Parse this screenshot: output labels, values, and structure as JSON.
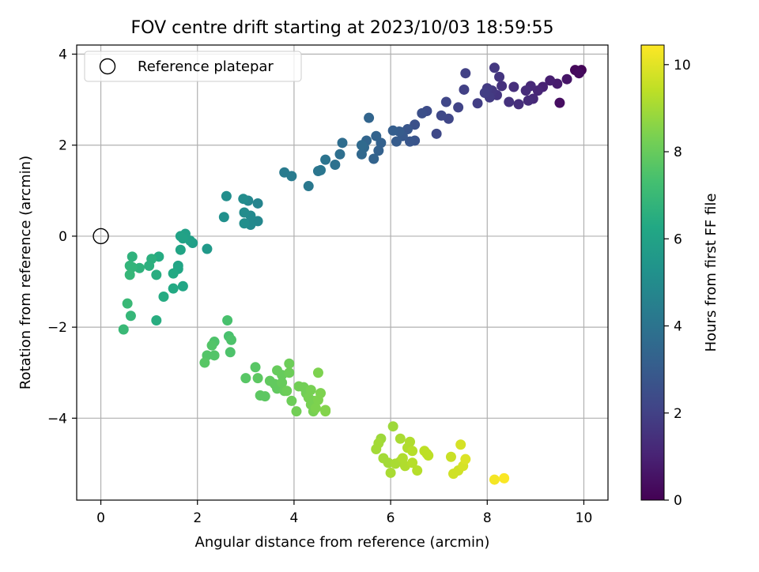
{
  "chart_data": {
    "type": "scatter",
    "title": "FOV centre drift starting at 2023/10/03 18:59:55",
    "xlabel": "Angular distance from reference (arcmin)",
    "ylabel": "Rotation from reference (arcmin)",
    "xlim": [
      -0.5,
      10.5
    ],
    "ylim": [
      -5.8,
      4.2
    ],
    "xticks": [
      0,
      2,
      4,
      6,
      8,
      10
    ],
    "yticks": [
      -4,
      -2,
      0,
      2,
      4
    ],
    "grid": true,
    "legend": {
      "position": "top-left",
      "entries": [
        "Reference platepar"
      ]
    },
    "reference_point": {
      "x": 0,
      "y": 0,
      "label": "Reference platepar"
    },
    "colorbar": {
      "label": "Hours from first FF file",
      "colormap": "viridis",
      "range": [
        0,
        10.45
      ],
      "ticks": [
        0,
        2,
        4,
        6,
        8,
        10
      ]
    },
    "points": [
      {
        "x": 9.95,
        "y": 3.65,
        "c": 0.1
      },
      {
        "x": 9.82,
        "y": 3.65,
        "c": 0.2
      },
      {
        "x": 9.9,
        "y": 3.58,
        "c": 0.3
      },
      {
        "x": 9.65,
        "y": 3.45,
        "c": 0.6
      },
      {
        "x": 9.5,
        "y": 2.93,
        "c": 0.4
      },
      {
        "x": 9.45,
        "y": 3.35,
        "c": 0.8
      },
      {
        "x": 9.3,
        "y": 3.42,
        "c": 0.9
      },
      {
        "x": 9.15,
        "y": 3.28,
        "c": 1.0
      },
      {
        "x": 9.05,
        "y": 3.2,
        "c": 1.1
      },
      {
        "x": 8.95,
        "y": 3.02,
        "c": 1.2
      },
      {
        "x": 8.85,
        "y": 2.98,
        "c": 1.3
      },
      {
        "x": 8.9,
        "y": 3.3,
        "c": 1.2
      },
      {
        "x": 8.8,
        "y": 3.2,
        "c": 1.3
      },
      {
        "x": 8.65,
        "y": 2.9,
        "c": 1.4
      },
      {
        "x": 8.55,
        "y": 3.28,
        "c": 1.4
      },
      {
        "x": 8.45,
        "y": 2.95,
        "c": 1.5
      },
      {
        "x": 8.3,
        "y": 3.3,
        "c": 1.5
      },
      {
        "x": 8.25,
        "y": 3.5,
        "c": 1.6
      },
      {
        "x": 8.2,
        "y": 3.1,
        "c": 1.6
      },
      {
        "x": 8.15,
        "y": 3.7,
        "c": 1.7
      },
      {
        "x": 8.1,
        "y": 3.2,
        "c": 1.7
      },
      {
        "x": 8.05,
        "y": 3.05,
        "c": 1.8
      },
      {
        "x": 8.0,
        "y": 3.25,
        "c": 1.8
      },
      {
        "x": 7.95,
        "y": 3.15,
        "c": 1.9
      },
      {
        "x": 7.8,
        "y": 2.92,
        "c": 1.9
      },
      {
        "x": 7.55,
        "y": 3.58,
        "c": 2.0
      },
      {
        "x": 7.52,
        "y": 3.22,
        "c": 2.0
      },
      {
        "x": 7.4,
        "y": 2.83,
        "c": 2.1
      },
      {
        "x": 7.2,
        "y": 2.58,
        "c": 2.2
      },
      {
        "x": 7.15,
        "y": 2.95,
        "c": 2.2
      },
      {
        "x": 7.05,
        "y": 2.65,
        "c": 2.3
      },
      {
        "x": 6.95,
        "y": 2.25,
        "c": 2.3
      },
      {
        "x": 6.75,
        "y": 2.75,
        "c": 2.4
      },
      {
        "x": 6.65,
        "y": 2.7,
        "c": 2.5
      },
      {
        "x": 6.5,
        "y": 2.45,
        "c": 2.6
      },
      {
        "x": 6.5,
        "y": 2.1,
        "c": 2.7
      },
      {
        "x": 6.4,
        "y": 2.08,
        "c": 2.8
      },
      {
        "x": 6.35,
        "y": 2.35,
        "c": 2.8
      },
      {
        "x": 6.25,
        "y": 2.2,
        "c": 2.9
      },
      {
        "x": 6.18,
        "y": 2.3,
        "c": 3.0
      },
      {
        "x": 6.12,
        "y": 2.08,
        "c": 3.0
      },
      {
        "x": 6.05,
        "y": 2.32,
        "c": 3.1
      },
      {
        "x": 5.8,
        "y": 2.05,
        "c": 3.2
      },
      {
        "x": 5.75,
        "y": 1.88,
        "c": 3.2
      },
      {
        "x": 5.7,
        "y": 2.2,
        "c": 3.3
      },
      {
        "x": 5.65,
        "y": 1.7,
        "c": 3.3
      },
      {
        "x": 5.55,
        "y": 2.6,
        "c": 3.4
      },
      {
        "x": 5.5,
        "y": 2.1,
        "c": 3.4
      },
      {
        "x": 5.45,
        "y": 1.95,
        "c": 3.5
      },
      {
        "x": 5.4,
        "y": 1.8,
        "c": 3.5
      },
      {
        "x": 5.4,
        "y": 2.0,
        "c": 3.6
      },
      {
        "x": 5.0,
        "y": 2.05,
        "c": 3.7
      },
      {
        "x": 4.95,
        "y": 1.8,
        "c": 3.8
      },
      {
        "x": 4.85,
        "y": 1.57,
        "c": 3.9
      },
      {
        "x": 4.65,
        "y": 1.68,
        "c": 4.0
      },
      {
        "x": 4.55,
        "y": 1.45,
        "c": 4.1
      },
      {
        "x": 4.5,
        "y": 1.43,
        "c": 4.1
      },
      {
        "x": 4.3,
        "y": 1.1,
        "c": 4.2
      },
      {
        "x": 3.95,
        "y": 1.32,
        "c": 4.3
      },
      {
        "x": 3.8,
        "y": 1.4,
        "c": 4.3
      },
      {
        "x": 3.25,
        "y": 0.72,
        "c": 4.7
      },
      {
        "x": 3.25,
        "y": 0.33,
        "c": 4.8
      },
      {
        "x": 3.1,
        "y": 0.45,
        "c": 4.9
      },
      {
        "x": 3.1,
        "y": 0.25,
        "c": 4.9
      },
      {
        "x": 3.05,
        "y": 0.78,
        "c": 4.8
      },
      {
        "x": 2.97,
        "y": 0.52,
        "c": 5.0
      },
      {
        "x": 2.95,
        "y": 0.82,
        "c": 5.0
      },
      {
        "x": 2.97,
        "y": 0.28,
        "c": 5.1
      },
      {
        "x": 2.6,
        "y": 0.88,
        "c": 5.1
      },
      {
        "x": 2.55,
        "y": 0.42,
        "c": 5.2
      },
      {
        "x": 2.2,
        "y": -0.28,
        "c": 5.6
      },
      {
        "x": 1.9,
        "y": -0.15,
        "c": 5.8
      },
      {
        "x": 1.85,
        "y": -0.1,
        "c": 5.9
      },
      {
        "x": 1.75,
        "y": 0.05,
        "c": 5.9
      },
      {
        "x": 1.7,
        "y": -0.05,
        "c": 6.0
      },
      {
        "x": 1.65,
        "y": 0.0,
        "c": 6.0
      },
      {
        "x": 1.65,
        "y": -0.3,
        "c": 6.1
      },
      {
        "x": 1.6,
        "y": -0.65,
        "c": 6.1
      },
      {
        "x": 1.6,
        "y": -0.72,
        "c": 6.2
      },
      {
        "x": 1.7,
        "y": -1.1,
        "c": 6.2
      },
      {
        "x": 1.5,
        "y": -0.82,
        "c": 6.3
      },
      {
        "x": 1.5,
        "y": -1.15,
        "c": 6.3
      },
      {
        "x": 1.3,
        "y": -1.33,
        "c": 6.4
      },
      {
        "x": 1.2,
        "y": -0.45,
        "c": 6.4
      },
      {
        "x": 1.15,
        "y": -0.85,
        "c": 6.5
      },
      {
        "x": 1.15,
        "y": -1.85,
        "c": 6.5
      },
      {
        "x": 1.05,
        "y": -0.5,
        "c": 6.6
      },
      {
        "x": 1.0,
        "y": -0.65,
        "c": 6.6
      },
      {
        "x": 0.8,
        "y": -0.7,
        "c": 6.7
      },
      {
        "x": 0.65,
        "y": -0.45,
        "c": 6.7
      },
      {
        "x": 0.65,
        "y": -0.68,
        "c": 6.8
      },
      {
        "x": 0.6,
        "y": -0.65,
        "c": 6.8
      },
      {
        "x": 0.6,
        "y": -0.85,
        "c": 6.9
      },
      {
        "x": 0.62,
        "y": -1.75,
        "c": 6.9
      },
      {
        "x": 0.55,
        "y": -1.48,
        "c": 7.0
      },
      {
        "x": 0.47,
        "y": -2.05,
        "c": 7.0
      },
      {
        "x": 2.62,
        "y": -1.85,
        "c": 7.4
      },
      {
        "x": 2.65,
        "y": -2.2,
        "c": 7.4
      },
      {
        "x": 2.7,
        "y": -2.28,
        "c": 7.5
      },
      {
        "x": 2.68,
        "y": -2.55,
        "c": 7.5
      },
      {
        "x": 2.35,
        "y": -2.32,
        "c": 7.5
      },
      {
        "x": 2.3,
        "y": -2.4,
        "c": 7.6
      },
      {
        "x": 2.35,
        "y": -2.62,
        "c": 7.6
      },
      {
        "x": 2.2,
        "y": -2.62,
        "c": 7.6
      },
      {
        "x": 2.15,
        "y": -2.78,
        "c": 7.7
      },
      {
        "x": 3.2,
        "y": -2.88,
        "c": 7.7
      },
      {
        "x": 3.0,
        "y": -3.12,
        "c": 7.7
      },
      {
        "x": 3.25,
        "y": -3.12,
        "c": 7.8
      },
      {
        "x": 3.3,
        "y": -3.5,
        "c": 7.8
      },
      {
        "x": 3.4,
        "y": -3.52,
        "c": 7.8
      },
      {
        "x": 3.5,
        "y": -3.18,
        "c": 7.9
      },
      {
        "x": 3.6,
        "y": -3.25,
        "c": 7.9
      },
      {
        "x": 3.65,
        "y": -3.35,
        "c": 7.9
      },
      {
        "x": 3.65,
        "y": -2.95,
        "c": 8.0
      },
      {
        "x": 3.75,
        "y": -3.05,
        "c": 8.0
      },
      {
        "x": 3.75,
        "y": -3.22,
        "c": 8.0
      },
      {
        "x": 3.8,
        "y": -3.4,
        "c": 8.0
      },
      {
        "x": 3.9,
        "y": -2.8,
        "c": 8.1
      },
      {
        "x": 3.9,
        "y": -3.0,
        "c": 8.1
      },
      {
        "x": 3.85,
        "y": -3.4,
        "c": 8.1
      },
      {
        "x": 3.95,
        "y": -3.62,
        "c": 8.1
      },
      {
        "x": 4.05,
        "y": -3.85,
        "c": 8.2
      },
      {
        "x": 4.1,
        "y": -3.3,
        "c": 8.2
      },
      {
        "x": 4.2,
        "y": -3.32,
        "c": 8.2
      },
      {
        "x": 4.25,
        "y": -3.45,
        "c": 8.2
      },
      {
        "x": 4.3,
        "y": -3.55,
        "c": 8.3
      },
      {
        "x": 4.35,
        "y": -3.38,
        "c": 8.3
      },
      {
        "x": 4.35,
        "y": -3.7,
        "c": 8.3
      },
      {
        "x": 4.4,
        "y": -3.62,
        "c": 8.3
      },
      {
        "x": 4.4,
        "y": -3.85,
        "c": 8.3
      },
      {
        "x": 4.45,
        "y": -3.78,
        "c": 8.4
      },
      {
        "x": 4.5,
        "y": -3.6,
        "c": 8.4
      },
      {
        "x": 4.5,
        "y": -3.0,
        "c": 8.4
      },
      {
        "x": 4.55,
        "y": -3.45,
        "c": 8.4
      },
      {
        "x": 4.65,
        "y": -3.82,
        "c": 8.5
      },
      {
        "x": 4.65,
        "y": -3.85,
        "c": 8.5
      },
      {
        "x": 6.05,
        "y": -4.18,
        "c": 8.9
      },
      {
        "x": 5.8,
        "y": -4.45,
        "c": 8.9
      },
      {
        "x": 5.75,
        "y": -4.55,
        "c": 9.0
      },
      {
        "x": 5.7,
        "y": -4.68,
        "c": 9.0
      },
      {
        "x": 5.85,
        "y": -4.88,
        "c": 9.0
      },
      {
        "x": 5.95,
        "y": -4.98,
        "c": 9.0
      },
      {
        "x": 6.0,
        "y": -5.2,
        "c": 9.1
      },
      {
        "x": 6.1,
        "y": -5.0,
        "c": 9.1
      },
      {
        "x": 6.2,
        "y": -4.45,
        "c": 9.1
      },
      {
        "x": 6.2,
        "y": -4.95,
        "c": 9.1
      },
      {
        "x": 6.25,
        "y": -4.88,
        "c": 9.2
      },
      {
        "x": 6.3,
        "y": -5.05,
        "c": 9.2
      },
      {
        "x": 6.35,
        "y": -4.65,
        "c": 9.2
      },
      {
        "x": 6.4,
        "y": -4.52,
        "c": 9.2
      },
      {
        "x": 6.45,
        "y": -4.72,
        "c": 9.3
      },
      {
        "x": 6.45,
        "y": -4.98,
        "c": 9.3
      },
      {
        "x": 6.55,
        "y": -5.15,
        "c": 9.3
      },
      {
        "x": 6.7,
        "y": -4.72,
        "c": 9.4
      },
      {
        "x": 6.75,
        "y": -4.78,
        "c": 9.4
      },
      {
        "x": 6.78,
        "y": -4.82,
        "c": 9.4
      },
      {
        "x": 7.25,
        "y": -4.85,
        "c": 9.6
      },
      {
        "x": 7.3,
        "y": -5.22,
        "c": 9.7
      },
      {
        "x": 7.4,
        "y": -5.15,
        "c": 9.7
      },
      {
        "x": 7.45,
        "y": -4.58,
        "c": 9.8
      },
      {
        "x": 7.5,
        "y": -5.05,
        "c": 9.8
      },
      {
        "x": 7.55,
        "y": -4.9,
        "c": 9.9
      },
      {
        "x": 8.15,
        "y": -5.35,
        "c": 10.3
      },
      {
        "x": 8.35,
        "y": -5.32,
        "c": 10.4
      }
    ]
  }
}
